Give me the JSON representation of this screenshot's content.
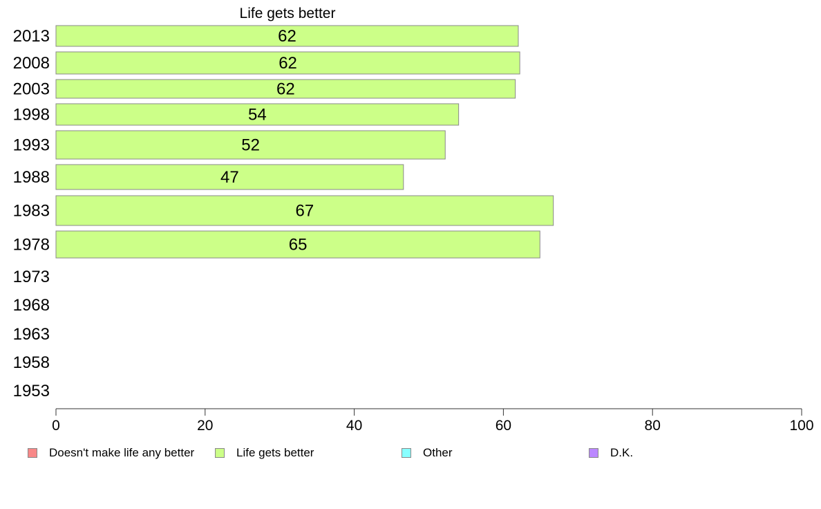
{
  "chart_data": {
    "type": "bar",
    "orientation": "horizontal",
    "title": "Life gets better",
    "xlabel": "",
    "ylabel": "",
    "xlim": [
      0,
      100
    ],
    "xticks": [
      "0",
      "20",
      "40",
      "60",
      "80",
      "100"
    ],
    "categories": [
      "2013",
      "2008",
      "2003",
      "1998",
      "1993",
      "1988",
      "1983",
      "1978",
      "1973",
      "1968",
      "1963",
      "1958",
      "1953"
    ],
    "series": [
      {
        "name": "Life gets better",
        "color": "#ccff88",
        "values": [
          62,
          62.2,
          61.6,
          54,
          52.2,
          46.6,
          66.7,
          64.9,
          null,
          null,
          null,
          null,
          null
        ],
        "labels": [
          "62",
          "62",
          "62",
          "54",
          "52",
          "47",
          "67",
          "65",
          "",
          "",
          "",
          "",
          ""
        ]
      }
    ],
    "legend_position": "bottom",
    "grid": false
  },
  "legend": [
    {
      "label": "Doesn't make life any better",
      "color": "#f88888"
    },
    {
      "label": "Life gets better",
      "color": "#ccff88"
    },
    {
      "label": "Other",
      "color": "#88ffff"
    },
    {
      "label": "D.K.",
      "color": "#bb88ff"
    }
  ]
}
